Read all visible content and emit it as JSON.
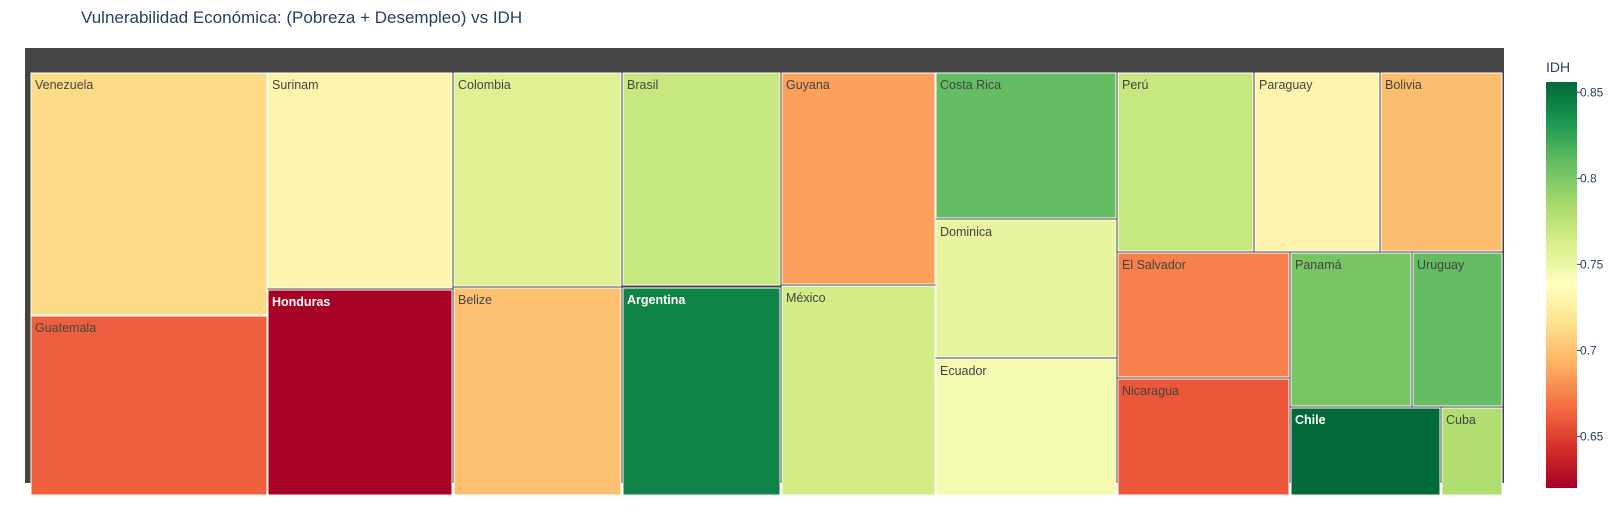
{
  "title": "Vulnerabilidad Económica: (Pobreza + Desempleo) vs IDH",
  "chart_data": {
    "type": "treemap",
    "title": "Vulnerabilidad Económica: (Pobreza + Desempleo) vs IDH",
    "size_metric": "Pobreza + Desempleo",
    "color_metric": "IDH",
    "colorscale": "RdYlGn",
    "color_range": [
      0.62,
      0.856
    ],
    "colorbar_title": "IDH",
    "colorbar_ticks": [
      "0.85",
      "0.8",
      "0.75",
      "0.7",
      "0.65"
    ],
    "tiles": [
      {
        "label": "Venezuela",
        "idh": 0.712
      },
      {
        "label": "Guatemala",
        "idh": 0.662
      },
      {
        "label": "Surinam",
        "idh": 0.73
      },
      {
        "label": "Honduras",
        "idh": 0.621
      },
      {
        "label": "Colombia",
        "idh": 0.758
      },
      {
        "label": "Belize",
        "idh": 0.7
      },
      {
        "label": "Brasil",
        "idh": 0.77
      },
      {
        "label": "Argentina",
        "idh": 0.842
      },
      {
        "label": "Guyana",
        "idh": 0.686
      },
      {
        "label": "México",
        "idh": 0.765
      },
      {
        "label": "Costa Rica",
        "idh": 0.809
      },
      {
        "label": "Dominica",
        "idh": 0.753
      },
      {
        "label": "Ecuador",
        "idh": 0.745
      },
      {
        "label": "Perú",
        "idh": 0.77
      },
      {
        "label": "Paraguay",
        "idh": 0.73
      },
      {
        "label": "Bolivia",
        "idh": 0.698
      },
      {
        "label": "El Salvador",
        "idh": 0.674
      },
      {
        "label": "Nicaragua",
        "idh": 0.659
      },
      {
        "label": "Panamá",
        "idh": 0.802
      },
      {
        "label": "Uruguay",
        "idh": 0.809
      },
      {
        "label": "Chile",
        "idh": 0.855
      },
      {
        "label": "Cuba",
        "idh": 0.78
      }
    ]
  }
}
